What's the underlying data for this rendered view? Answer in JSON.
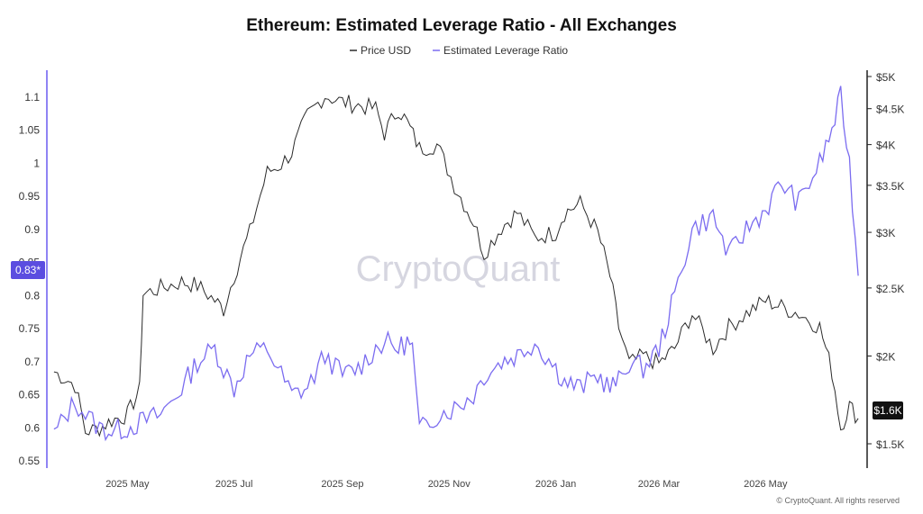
{
  "chart_data": {
    "type": "line",
    "title": "Ethereum: Estimated Leverage Ratio - All Exchanges",
    "legend": {
      "placement": "top-center",
      "items": [
        "Price USD",
        "Estimated Leverage Ratio"
      ]
    },
    "x_ticks": [
      "2025 May",
      "2025 Jul",
      "2025 Sep",
      "2025 Nov",
      "2026 Jan",
      "2026 Mar",
      "2026 May"
    ],
    "y_left": {
      "ticks": [
        "1.1",
        "1.05",
        "1",
        "0.95",
        "0.9",
        "0.85",
        "0.8",
        "0.75",
        "0.7",
        "0.65",
        "0.6",
        "0.55"
      ],
      "range": [
        0.55,
        1.1
      ]
    },
    "y_right": {
      "scale": "log",
      "ticks": [
        "$5K",
        "$4.5K",
        "$4K",
        "$3.5K",
        "$3K",
        "$2.5K",
        "$2K",
        "$1.6K",
        "$1.5K"
      ]
    },
    "current_leverage_label": "0.83*",
    "current_price_label": "$1.6K",
    "watermark": "CryptoQuant",
    "copyright": "© CryptoQuant. All rights reserved",
    "colors": {
      "price": "#2b2b2b",
      "leverage": "#7b6cf0",
      "badge": "#5b4de0",
      "price_badge": "#111111"
    },
    "series": [
      {
        "name": "Price USD",
        "x": [
          "2025-03-20",
          "2025-04-01",
          "2025-04-07",
          "2025-04-15",
          "2025-04-22",
          "2025-05-01",
          "2025-05-08",
          "2025-05-10",
          "2025-05-20",
          "2025-06-01",
          "2025-06-10",
          "2025-06-20",
          "2025-06-25",
          "2025-07-01",
          "2025-07-10",
          "2025-07-20",
          "2025-07-28",
          "2025-08-03",
          "2025-08-12",
          "2025-08-22",
          "2025-09-01",
          "2025-09-10",
          "2025-09-20",
          "2025-09-25",
          "2025-10-03",
          "2025-10-08",
          "2025-10-15",
          "2025-10-25",
          "2025-11-04",
          "2025-11-15",
          "2025-11-21",
          "2025-12-01",
          "2025-12-10",
          "2025-12-20",
          "2026-01-01",
          "2026-01-06",
          "2026-01-15",
          "2026-01-25",
          "2026-02-01",
          "2026-02-06",
          "2026-02-12",
          "2026-02-20",
          "2026-03-01",
          "2026-03-10",
          "2026-03-20",
          "2026-04-01",
          "2026-04-10",
          "2026-04-20",
          "2026-05-01",
          "2026-05-10",
          "2026-05-20",
          "2026-06-01",
          "2026-06-08",
          "2026-06-13",
          "2026-06-18",
          "2026-06-23"
        ],
        "values": [
          1900,
          1820,
          1560,
          1580,
          1620,
          1650,
          1790,
          2450,
          2500,
          2550,
          2520,
          2400,
          2330,
          2600,
          3000,
          3650,
          3750,
          3900,
          4400,
          4700,
          4600,
          4550,
          4500,
          4150,
          4500,
          4300,
          3950,
          4000,
          3500,
          3100,
          2800,
          3050,
          3200,
          2950,
          3000,
          3200,
          3300,
          3000,
          2600,
          2200,
          1950,
          2000,
          1950,
          2050,
          2300,
          2050,
          2200,
          2300,
          2400,
          2350,
          2300,
          2200,
          1900,
          1580,
          1700,
          1630
        ]
      },
      {
        "name": "Estimated Leverage Ratio",
        "x": [
          "2025-03-20",
          "2025-04-01",
          "2025-04-07",
          "2025-04-15",
          "2025-04-22",
          "2025-05-01",
          "2025-05-10",
          "2025-05-20",
          "2025-06-01",
          "2025-06-10",
          "2025-06-20",
          "2025-06-25",
          "2025-07-01",
          "2025-07-10",
          "2025-07-20",
          "2025-07-28",
          "2025-08-03",
          "2025-08-12",
          "2025-08-22",
          "2025-09-01",
          "2025-09-10",
          "2025-09-20",
          "2025-09-25",
          "2025-10-03",
          "2025-10-08",
          "2025-10-11",
          "2025-10-15",
          "2025-10-25",
          "2025-11-04",
          "2025-11-15",
          "2025-11-21",
          "2025-12-01",
          "2025-12-10",
          "2025-12-20",
          "2026-01-01",
          "2026-01-06",
          "2026-01-15",
          "2026-01-25",
          "2026-02-01",
          "2026-02-06",
          "2026-02-12",
          "2026-02-20",
          "2026-03-01",
          "2026-03-10",
          "2026-03-20",
          "2026-04-01",
          "2026-04-10",
          "2026-04-20",
          "2026-05-01",
          "2026-05-10",
          "2026-05-20",
          "2026-06-01",
          "2026-06-08",
          "2026-06-13",
          "2026-06-18",
          "2026-06-23"
        ],
        "values": [
          0.59,
          0.64,
          0.62,
          0.6,
          0.595,
          0.6,
          0.61,
          0.62,
          0.66,
          0.7,
          0.72,
          0.69,
          0.66,
          0.71,
          0.72,
          0.68,
          0.65,
          0.66,
          0.71,
          0.68,
          0.69,
          0.72,
          0.73,
          0.72,
          0.73,
          0.72,
          0.595,
          0.62,
          0.63,
          0.65,
          0.68,
          0.7,
          0.71,
          0.73,
          0.69,
          0.67,
          0.66,
          0.68,
          0.66,
          0.67,
          0.7,
          0.69,
          0.72,
          0.8,
          0.9,
          0.92,
          0.86,
          0.9,
          0.93,
          0.97,
          0.94,
          1.0,
          1.05,
          1.1,
          1.0,
          0.83
        ]
      }
    ]
  }
}
